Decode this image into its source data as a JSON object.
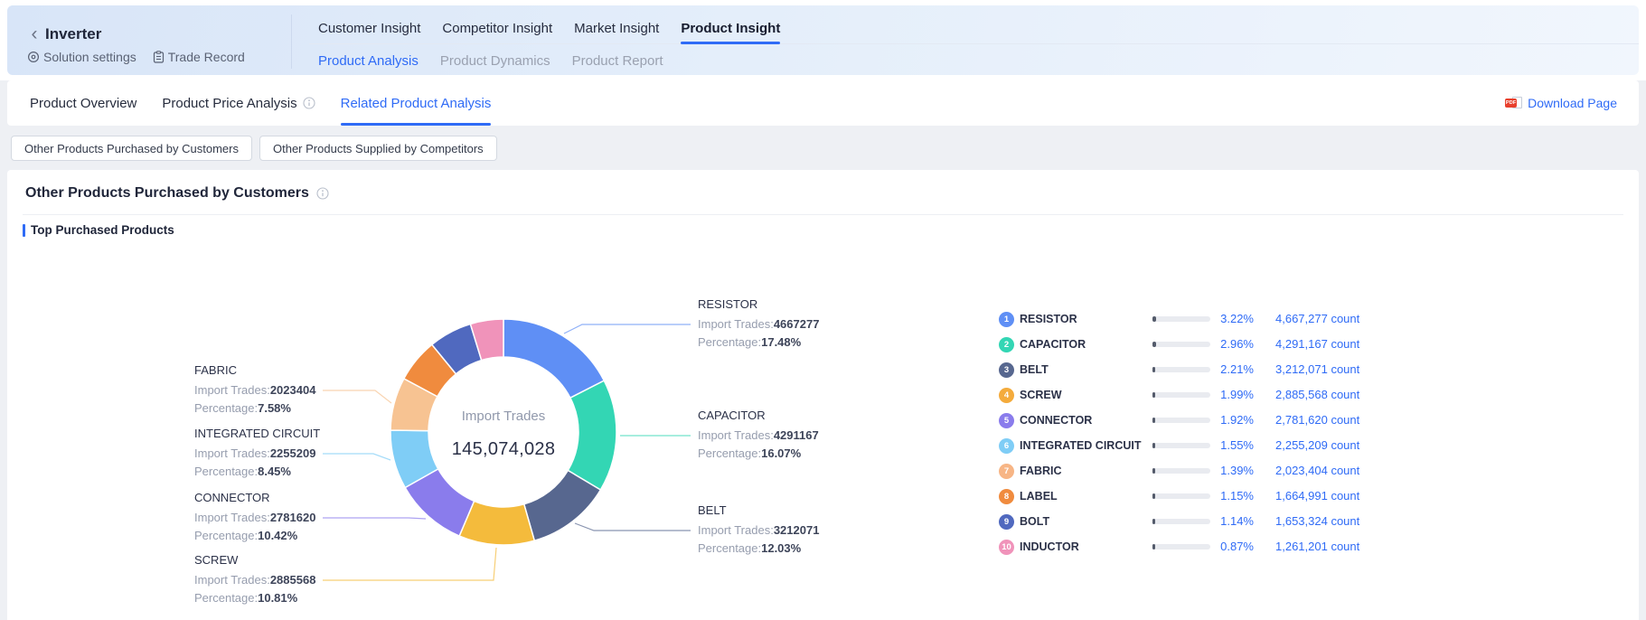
{
  "header": {
    "back_icon": "‹",
    "title": "Inverter",
    "links": [
      {
        "label": "Solution settings"
      },
      {
        "label": "Trade Record"
      }
    ],
    "main_tabs": [
      {
        "label": "Customer Insight"
      },
      {
        "label": "Competitor Insight"
      },
      {
        "label": "Market Insight"
      },
      {
        "label": "Product Insight"
      }
    ],
    "sub_tabs": [
      {
        "label": "Product Analysis"
      },
      {
        "label": "Product Dynamics"
      },
      {
        "label": "Product Report"
      }
    ]
  },
  "toolbar": {
    "tabs": [
      {
        "label": "Product Overview"
      },
      {
        "label": "Product Price Analysis"
      },
      {
        "label": "Related Product Analysis"
      }
    ],
    "download_label": "Download Page",
    "pdf_icon_label": "PDF"
  },
  "filters": {
    "buttons": [
      {
        "label": "Other Products Purchased by Customers"
      },
      {
        "label": "Other Products Supplied by Competitors"
      }
    ]
  },
  "panel": {
    "title": "Other Products Purchased by Customers",
    "section_title": "Top Purchased Products"
  },
  "colors": {
    "accent_blue": "#2f6bf6",
    "bar_track": "#e9ebf0",
    "bar_fill": "#545b6b"
  },
  "chart_data": {
    "type": "pie",
    "title": "Top Purchased Products",
    "center_label": "Import Trades",
    "center_value": "145,074,028",
    "legend_position": "right",
    "slices": [
      {
        "name": "RESISTOR",
        "import_trades": 4667277,
        "ring_percent": 17.48,
        "color": "#5f8ff5"
      },
      {
        "name": "CAPACITOR",
        "import_trades": 4291167,
        "ring_percent": 16.07,
        "color": "#33d6b4"
      },
      {
        "name": "BELT",
        "import_trades": 3212071,
        "ring_percent": 12.03,
        "color": "#57678f"
      },
      {
        "name": "SCREW",
        "import_trades": 2885568,
        "ring_percent": 10.81,
        "color": "#f4bb3c"
      },
      {
        "name": "CONNECTOR",
        "import_trades": 2781620,
        "ring_percent": 10.42,
        "color": "#8a7cec"
      },
      {
        "name": "INTEGRATED CIRCUIT",
        "import_trades": 2255209,
        "ring_percent": 8.45,
        "color": "#7fcdf6"
      },
      {
        "name": "FABRIC",
        "import_trades": 2023404,
        "ring_percent": 7.58,
        "color": "#f7c392"
      },
      {
        "name": "LABEL",
        "import_trades": 1664991,
        "ring_percent": 6.24,
        "color": "#f08b3e"
      },
      {
        "name": "BOLT",
        "import_trades": 1653324,
        "ring_percent": 6.19,
        "color": "#5069bf"
      },
      {
        "name": "INDUCTOR",
        "import_trades": 1261201,
        "ring_percent": 4.73,
        "color": "#f093ba"
      }
    ],
    "callout_field_labels": {
      "trades": "Import Trades:",
      "percent": "Percentage:"
    },
    "callouts": [
      {
        "name": "RESISTOR",
        "trades": "4667277",
        "percent": "17.48%"
      },
      {
        "name": "CAPACITOR",
        "trades": "4291167",
        "percent": "16.07%"
      },
      {
        "name": "BELT",
        "trades": "3212071",
        "percent": "12.03%"
      },
      {
        "name": "FABRIC",
        "trades": "2023404",
        "percent": "7.58%"
      },
      {
        "name": "INTEGRATED CIRCUIT",
        "trades": "2255209",
        "percent": "8.45%"
      },
      {
        "name": "CONNECTOR",
        "trades": "2781620",
        "percent": "10.42%"
      },
      {
        "name": "SCREW",
        "trades": "2885568",
        "percent": "10.81%"
      }
    ],
    "ranking": [
      {
        "rank": "1",
        "name": "RESISTOR",
        "percent": "3.22%",
        "percent_value": 3.22,
        "count": "4,667,277 count",
        "color": "#5f8ff5"
      },
      {
        "rank": "2",
        "name": "CAPACITOR",
        "percent": "2.96%",
        "percent_value": 2.96,
        "count": "4,291,167 count",
        "color": "#33d6b4"
      },
      {
        "rank": "3",
        "name": "BELT",
        "percent": "2.21%",
        "percent_value": 2.21,
        "count": "3,212,071 count",
        "color": "#57678f"
      },
      {
        "rank": "4",
        "name": "SCREW",
        "percent": "1.99%",
        "percent_value": 1.99,
        "count": "2,885,568 count",
        "color": "#f4ab3c"
      },
      {
        "rank": "5",
        "name": "CONNECTOR",
        "percent": "1.92%",
        "percent_value": 1.92,
        "count": "2,781,620 count",
        "color": "#8a7cec"
      },
      {
        "rank": "6",
        "name": "INTEGRATED CIRCUIT",
        "percent": "1.55%",
        "percent_value": 1.55,
        "count": "2,255,209 count",
        "color": "#7fcdf6"
      },
      {
        "rank": "7",
        "name": "FABRIC",
        "percent": "1.39%",
        "percent_value": 1.39,
        "count": "2,023,404 count",
        "color": "#f7b585"
      },
      {
        "rank": "8",
        "name": "LABEL",
        "percent": "1.15%",
        "percent_value": 1.15,
        "count": "1,664,991 count",
        "color": "#f08b3e"
      },
      {
        "rank": "9",
        "name": "BOLT",
        "percent": "1.14%",
        "percent_value": 1.14,
        "count": "1,653,324 count",
        "color": "#5069bf"
      },
      {
        "rank": "10",
        "name": "INDUCTOR",
        "percent": "0.87%",
        "percent_value": 0.87,
        "count": "1,261,201 count",
        "color": "#f093ba"
      }
    ]
  }
}
